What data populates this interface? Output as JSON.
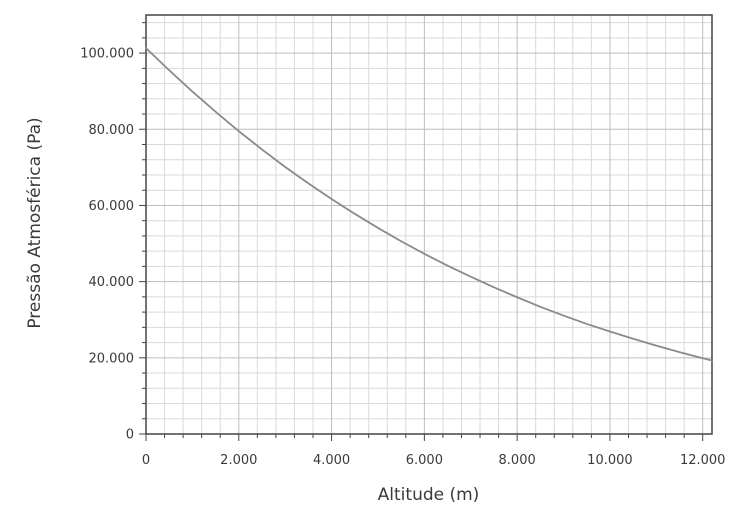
{
  "chart_data": {
    "type": "line",
    "title": "",
    "xlabel": "Altitude (m)",
    "ylabel": "Pressão Atmosférica (Pa)",
    "xlim": [
      0,
      12200
    ],
    "ylim": [
      0,
      110000
    ],
    "x_ticks": [
      0,
      2000,
      4000,
      6000,
      8000,
      10000,
      12000
    ],
    "x_tick_labels": [
      "0",
      "2.000",
      "4.000",
      "6.000",
      "8.000",
      "10.000",
      "12.000"
    ],
    "y_ticks": [
      0,
      20000,
      40000,
      60000,
      80000,
      100000
    ],
    "y_tick_labels": [
      "0",
      "20.000",
      "40.000",
      "60.000",
      "80.000",
      "100.000"
    ],
    "grid": true,
    "legend": "none",
    "line_color": "#8a8a8a",
    "series": [
      {
        "x": [
          0,
          500,
          1000,
          1500,
          2000,
          2500,
          3000,
          3500,
          4000,
          4500,
          5000,
          5500,
          6000,
          6500,
          7000,
          7500,
          8000,
          8500,
          9000,
          9500,
          10000,
          10500,
          11000,
          11500,
          12000,
          12200
        ],
        "values": [
          101300,
          95500,
          89900,
          84600,
          79500,
          74700,
          70100,
          65800,
          61700,
          57800,
          54100,
          50600,
          47300,
          44200,
          41300,
          38500,
          35900,
          33400,
          31100,
          28900,
          26900,
          25000,
          23200,
          21500,
          19900,
          19300
        ]
      }
    ]
  }
}
